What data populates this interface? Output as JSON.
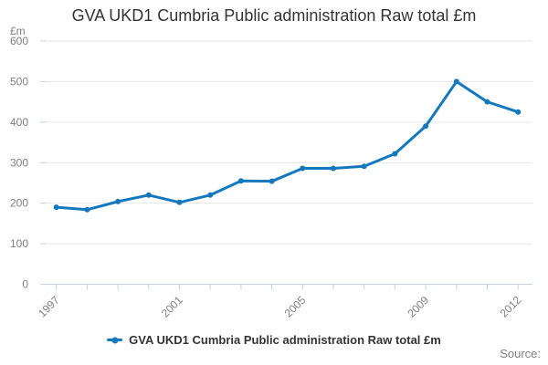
{
  "chart_data": {
    "type": "line",
    "title": "GVA UKD1 Cumbria Public administration Raw total £m",
    "ylabel": "£m",
    "xlabel": "",
    "x": [
      "1997",
      "1998",
      "1999",
      "2000",
      "2001",
      "2002",
      "2003",
      "2004",
      "2005",
      "2006",
      "2007",
      "2008",
      "2009",
      "2010",
      "2011",
      "2012"
    ],
    "series": [
      {
        "name": "GVA UKD1 Cumbria Public administration Raw total £m",
        "values": [
          190,
          184,
          204,
          220,
          202,
          220,
          255,
          254,
          286,
          286,
          291,
          322,
          390,
          500,
          450,
          425
        ]
      }
    ],
    "ylim": [
      0,
      600
    ],
    "y_ticks": [
      0,
      100,
      200,
      300,
      400,
      500,
      600
    ],
    "x_labeled_ticks": [
      "1997",
      "2001",
      "2005",
      "2009",
      "2012"
    ],
    "grid": true,
    "legend_position": "bottom-center",
    "line_color": "#1478be",
    "grid_color": "#e6e6e6",
    "axis_color": "#c9d2dd",
    "tick_label_color": "#808080"
  },
  "legend": {
    "label": "GVA UKD1 Cumbria Public administration Raw total £m"
  },
  "footer": {
    "source_label": "Source:"
  }
}
